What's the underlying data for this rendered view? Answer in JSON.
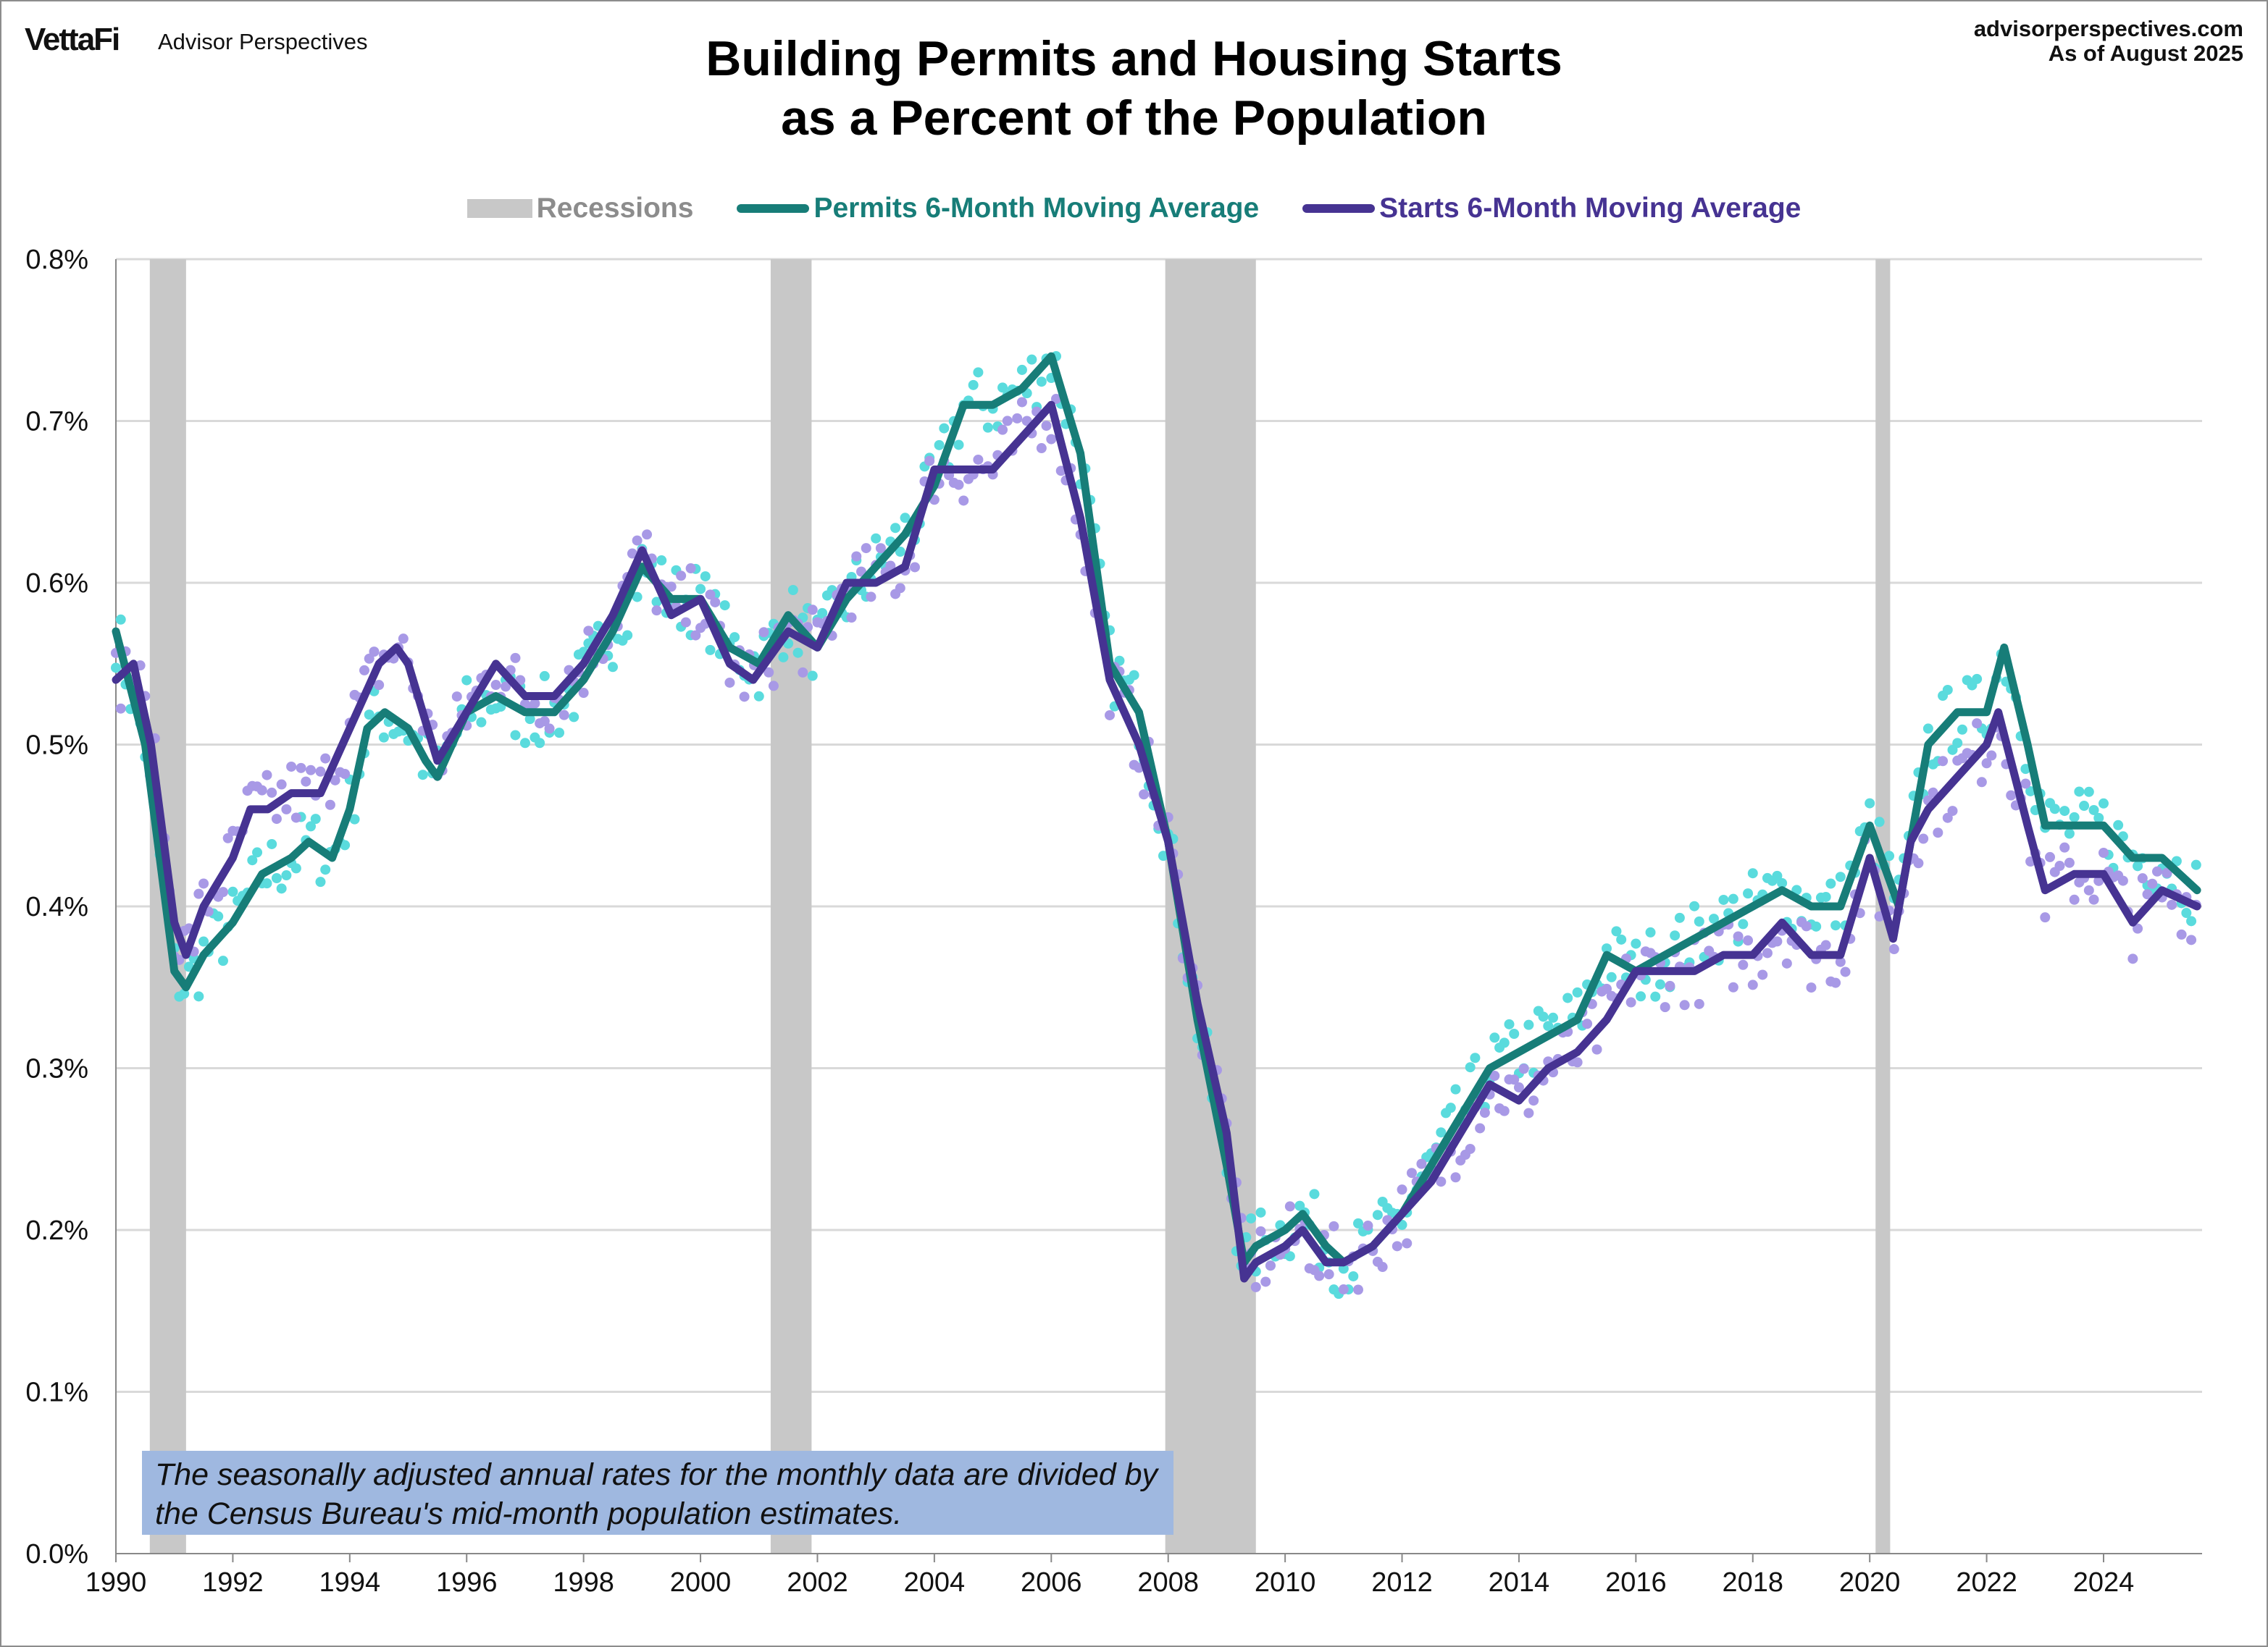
{
  "header": {
    "logo": "VettaFi",
    "brand": "Advisor Perspectives",
    "site": "advisorperspectives.com",
    "as_of": "As of August 2025"
  },
  "note": "The seasonally adjusted annual rates for the monthly data are divided by the Census Bureau's mid-month population estimates.",
  "colors": {
    "permits": "#177d78",
    "starts": "#463392",
    "permits_dots": "#5adbdd",
    "starts_dots": "#a899e6",
    "recession": "#c8c8c8",
    "grid": "#d9d9d9"
  },
  "chart_data": {
    "type": "line",
    "title_lines": [
      "Building Permits and Housing Starts",
      "as a Percent of the Population"
    ],
    "xlabel": "",
    "ylabel": "",
    "xlim": [
      1990,
      2025.9
    ],
    "ylim": [
      0,
      0.8
    ],
    "y_unit": "%",
    "grid": true,
    "legend_placement": "top",
    "legend": [
      "Recessions",
      "Permits 6-Month Moving Average",
      "Starts 6-Month Moving Average"
    ],
    "x_ticks": [
      1990,
      1992,
      1994,
      1996,
      1998,
      2000,
      2002,
      2004,
      2006,
      2008,
      2010,
      2012,
      2014,
      2016,
      2018,
      2020,
      2022,
      2024
    ],
    "y_ticks": [
      "0.0%",
      "0.1%",
      "0.2%",
      "0.3%",
      "0.4%",
      "0.5%",
      "0.6%",
      "0.7%",
      "0.8%"
    ],
    "recessions": [
      [
        1990.58,
        1991.2
      ],
      [
        2001.2,
        2001.9
      ],
      [
        2007.95,
        2009.5
      ],
      [
        2020.1,
        2020.35
      ]
    ],
    "series": [
      {
        "name": "Permits 6-Month Moving Average",
        "points": [
          [
            1990.0,
            0.57
          ],
          [
            1990.5,
            0.5
          ],
          [
            1991.0,
            0.36
          ],
          [
            1991.2,
            0.35
          ],
          [
            1991.5,
            0.37
          ],
          [
            1992.0,
            0.39
          ],
          [
            1992.5,
            0.42
          ],
          [
            1993.0,
            0.43
          ],
          [
            1993.3,
            0.44
          ],
          [
            1993.7,
            0.43
          ],
          [
            1994.0,
            0.46
          ],
          [
            1994.3,
            0.51
          ],
          [
            1994.6,
            0.52
          ],
          [
            1995.0,
            0.51
          ],
          [
            1995.3,
            0.49
          ],
          [
            1995.5,
            0.48
          ],
          [
            1996.0,
            0.52
          ],
          [
            1996.5,
            0.53
          ],
          [
            1997.0,
            0.52
          ],
          [
            1997.5,
            0.52
          ],
          [
            1998.0,
            0.54
          ],
          [
            1998.5,
            0.57
          ],
          [
            1999.0,
            0.61
          ],
          [
            1999.5,
            0.59
          ],
          [
            2000.0,
            0.59
          ],
          [
            2000.5,
            0.56
          ],
          [
            2001.0,
            0.55
          ],
          [
            2001.5,
            0.58
          ],
          [
            2002.0,
            0.56
          ],
          [
            2002.5,
            0.59
          ],
          [
            2003.0,
            0.61
          ],
          [
            2003.5,
            0.63
          ],
          [
            2004.0,
            0.66
          ],
          [
            2004.5,
            0.71
          ],
          [
            2005.0,
            0.71
          ],
          [
            2005.5,
            0.72
          ],
          [
            2006.0,
            0.74
          ],
          [
            2006.5,
            0.68
          ],
          [
            2007.0,
            0.55
          ],
          [
            2007.5,
            0.52
          ],
          [
            2008.0,
            0.44
          ],
          [
            2008.5,
            0.33
          ],
          [
            2009.0,
            0.24
          ],
          [
            2009.3,
            0.18
          ],
          [
            2009.5,
            0.19
          ],
          [
            2010.0,
            0.2
          ],
          [
            2010.3,
            0.21
          ],
          [
            2010.7,
            0.19
          ],
          [
            2011.0,
            0.18
          ],
          [
            2011.5,
            0.19
          ],
          [
            2012.0,
            0.21
          ],
          [
            2012.5,
            0.24
          ],
          [
            2013.0,
            0.27
          ],
          [
            2013.5,
            0.3
          ],
          [
            2014.0,
            0.31
          ],
          [
            2014.5,
            0.32
          ],
          [
            2015.0,
            0.33
          ],
          [
            2015.5,
            0.37
          ],
          [
            2016.0,
            0.36
          ],
          [
            2016.5,
            0.37
          ],
          [
            2017.0,
            0.38
          ],
          [
            2017.5,
            0.39
          ],
          [
            2018.0,
            0.4
          ],
          [
            2018.5,
            0.41
          ],
          [
            2019.0,
            0.4
          ],
          [
            2019.5,
            0.4
          ],
          [
            2020.0,
            0.45
          ],
          [
            2020.5,
            0.4
          ],
          [
            2021.0,
            0.5
          ],
          [
            2021.5,
            0.52
          ],
          [
            2022.0,
            0.52
          ],
          [
            2022.3,
            0.56
          ],
          [
            2022.7,
            0.5
          ],
          [
            2023.0,
            0.45
          ],
          [
            2023.5,
            0.45
          ],
          [
            2024.0,
            0.45
          ],
          [
            2024.5,
            0.43
          ],
          [
            2025.0,
            0.43
          ],
          [
            2025.6,
            0.41
          ]
        ]
      },
      {
        "name": "Starts 6-Month Moving Average",
        "points": [
          [
            1990.0,
            0.54
          ],
          [
            1990.3,
            0.55
          ],
          [
            1990.6,
            0.5
          ],
          [
            1991.0,
            0.39
          ],
          [
            1991.2,
            0.37
          ],
          [
            1991.5,
            0.4
          ],
          [
            1992.0,
            0.43
          ],
          [
            1992.3,
            0.46
          ],
          [
            1992.6,
            0.46
          ],
          [
            1993.0,
            0.47
          ],
          [
            1993.5,
            0.47
          ],
          [
            1994.0,
            0.51
          ],
          [
            1994.5,
            0.55
          ],
          [
            1994.8,
            0.56
          ],
          [
            1995.0,
            0.55
          ],
          [
            1995.5,
            0.49
          ],
          [
            1996.0,
            0.52
          ],
          [
            1996.5,
            0.55
          ],
          [
            1997.0,
            0.53
          ],
          [
            1997.5,
            0.53
          ],
          [
            1998.0,
            0.55
          ],
          [
            1998.5,
            0.58
          ],
          [
            1999.0,
            0.62
          ],
          [
            1999.5,
            0.58
          ],
          [
            2000.0,
            0.59
          ],
          [
            2000.5,
            0.55
          ],
          [
            2000.9,
            0.54
          ],
          [
            2001.5,
            0.57
          ],
          [
            2002.0,
            0.56
          ],
          [
            2002.5,
            0.6
          ],
          [
            2003.0,
            0.6
          ],
          [
            2003.5,
            0.61
          ],
          [
            2004.0,
            0.67
          ],
          [
            2004.5,
            0.67
          ],
          [
            2005.0,
            0.67
          ],
          [
            2005.5,
            0.69
          ],
          [
            2006.0,
            0.71
          ],
          [
            2006.5,
            0.64
          ],
          [
            2007.0,
            0.54
          ],
          [
            2007.5,
            0.5
          ],
          [
            2008.0,
            0.44
          ],
          [
            2008.5,
            0.34
          ],
          [
            2009.0,
            0.26
          ],
          [
            2009.3,
            0.17
          ],
          [
            2009.5,
            0.18
          ],
          [
            2010.0,
            0.19
          ],
          [
            2010.3,
            0.2
          ],
          [
            2010.7,
            0.18
          ],
          [
            2011.0,
            0.18
          ],
          [
            2011.5,
            0.19
          ],
          [
            2012.0,
            0.21
          ],
          [
            2012.5,
            0.23
          ],
          [
            2013.0,
            0.26
          ],
          [
            2013.5,
            0.29
          ],
          [
            2014.0,
            0.28
          ],
          [
            2014.5,
            0.3
          ],
          [
            2015.0,
            0.31
          ],
          [
            2015.5,
            0.33
          ],
          [
            2016.0,
            0.36
          ],
          [
            2016.5,
            0.36
          ],
          [
            2017.0,
            0.36
          ],
          [
            2017.5,
            0.37
          ],
          [
            2018.0,
            0.37
          ],
          [
            2018.5,
            0.39
          ],
          [
            2019.0,
            0.37
          ],
          [
            2019.5,
            0.37
          ],
          [
            2020.0,
            0.43
          ],
          [
            2020.4,
            0.38
          ],
          [
            2020.7,
            0.44
          ],
          [
            2021.0,
            0.46
          ],
          [
            2021.5,
            0.48
          ],
          [
            2022.0,
            0.5
          ],
          [
            2022.2,
            0.52
          ],
          [
            2022.7,
            0.45
          ],
          [
            2023.0,
            0.41
          ],
          [
            2023.5,
            0.42
          ],
          [
            2024.0,
            0.42
          ],
          [
            2024.5,
            0.39
          ],
          [
            2025.0,
            0.41
          ],
          [
            2025.6,
            0.4
          ]
        ]
      }
    ]
  }
}
